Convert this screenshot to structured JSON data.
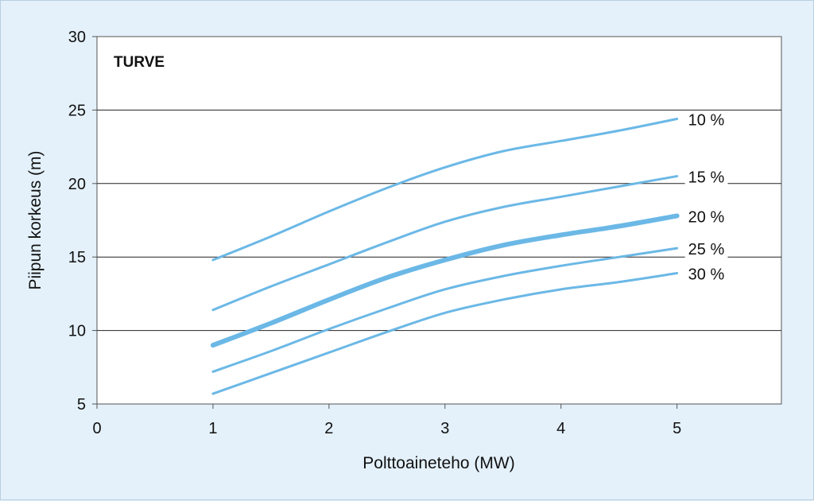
{
  "chart_data": {
    "type": "line",
    "title": "TURVE",
    "xlabel": "Polttoaineteho (MW)",
    "ylabel": "Piipun korkeus (m)",
    "xlim": [
      0,
      5.9
    ],
    "ylim": [
      5,
      30
    ],
    "x_ticks": [
      "0",
      "1",
      "2",
      "3",
      "4",
      "5"
    ],
    "y_ticks": [
      "5",
      "10",
      "15",
      "20",
      "25",
      "30"
    ],
    "grid": "horizontal",
    "colors": {
      "series": "#6bb8e6",
      "background": "#e4f1fb",
      "plot": "#ffffff"
    },
    "series": [
      {
        "name": "10 %",
        "x": [
          1,
          1.5,
          2,
          2.5,
          3,
          3.5,
          4,
          4.5,
          5
        ],
        "y": [
          14.8,
          16.4,
          18.1,
          19.7,
          21.1,
          22.2,
          22.9,
          23.6,
          24.4
        ]
      },
      {
        "name": "15 %",
        "x": [
          1,
          1.5,
          2,
          2.5,
          3,
          3.5,
          4,
          4.5,
          5
        ],
        "y": [
          11.4,
          13.0,
          14.5,
          16.0,
          17.4,
          18.4,
          19.1,
          19.8,
          20.5
        ]
      },
      {
        "name": "20 %",
        "x": [
          1,
          1.5,
          2,
          2.5,
          3,
          3.5,
          4,
          4.5,
          5
        ],
        "y": [
          9.0,
          10.5,
          12.1,
          13.6,
          14.8,
          15.8,
          16.5,
          17.1,
          17.8
        ],
        "emphasis": true
      },
      {
        "name": "25 %",
        "x": [
          1,
          1.5,
          2,
          2.5,
          3,
          3.5,
          4,
          4.5,
          5
        ],
        "y": [
          7.2,
          8.6,
          10.1,
          11.5,
          12.8,
          13.7,
          14.4,
          15.0,
          15.6
        ]
      },
      {
        "name": "30 %",
        "x": [
          1,
          1.5,
          2,
          2.5,
          3,
          3.5,
          4,
          4.5,
          5
        ],
        "y": [
          5.7,
          7.1,
          8.5,
          9.9,
          11.2,
          12.1,
          12.8,
          13.3,
          13.9
        ]
      }
    ]
  }
}
